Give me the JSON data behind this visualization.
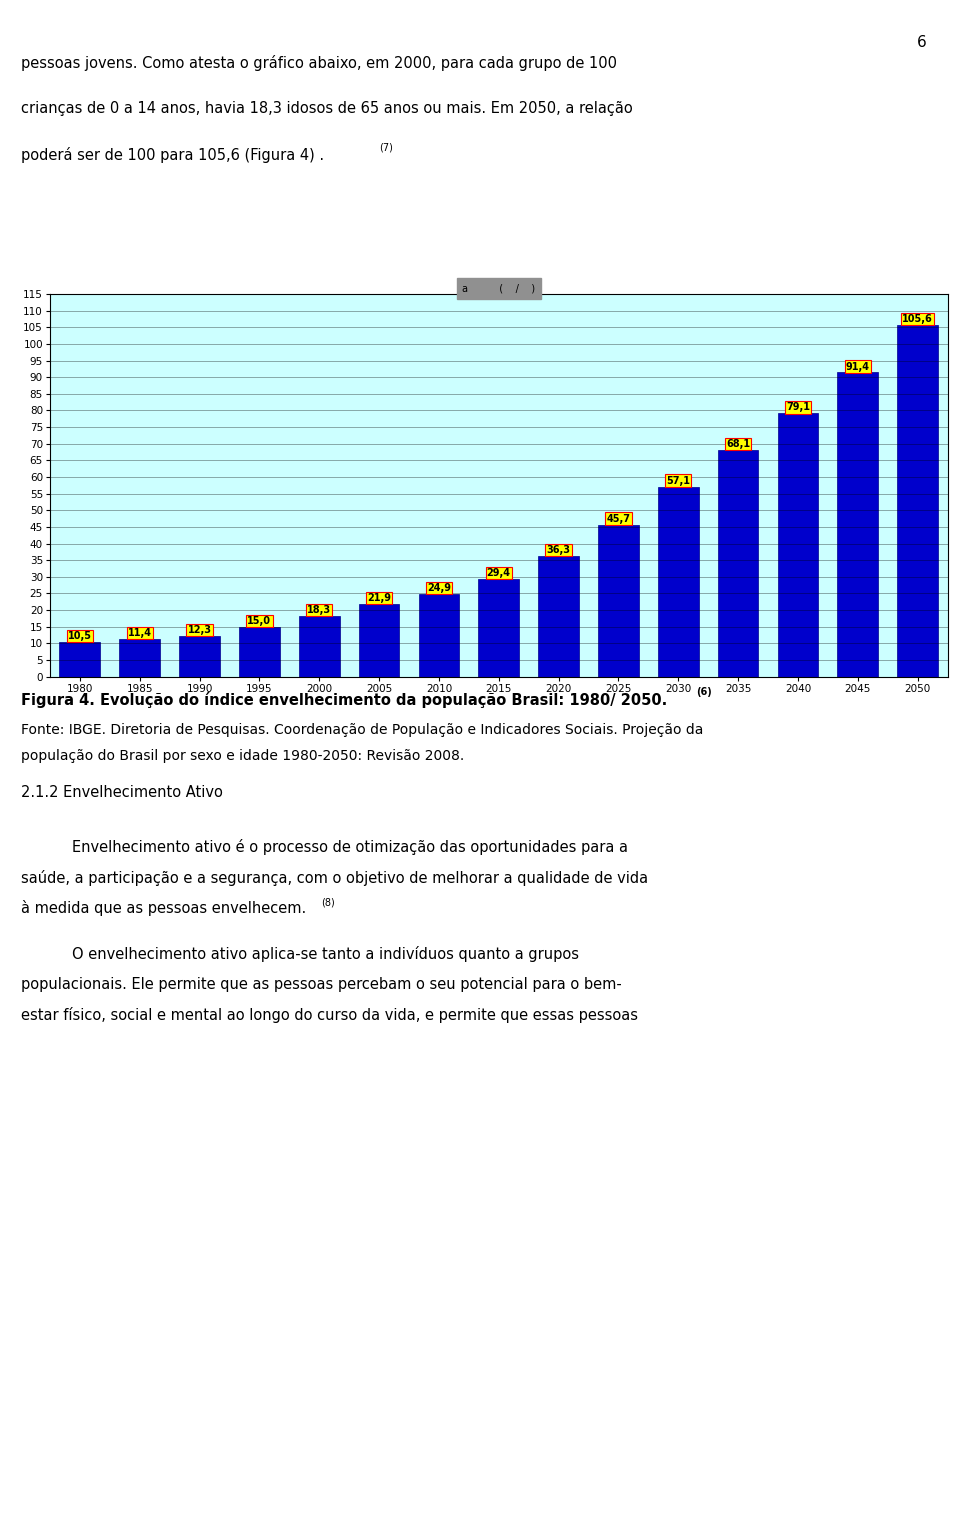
{
  "years": [
    1980,
    1985,
    1990,
    1995,
    2000,
    2005,
    2010,
    2015,
    2020,
    2025,
    2030,
    2035,
    2040,
    2045,
    2050
  ],
  "values": [
    10.5,
    11.4,
    12.3,
    15.0,
    18.3,
    21.9,
    24.9,
    29.4,
    36.3,
    45.7,
    57.1,
    68.1,
    79.1,
    91.4,
    105.6
  ],
  "bar_color": "#0000CC",
  "bar_edge_color": "#00008B",
  "label_bg_color": "#FFFF00",
  "label_border_color": "#FF0000",
  "plot_bg_color": "#CCFFFF",
  "title_bg_color": "#909090",
  "ylabel_values": [
    0,
    5,
    10,
    15,
    20,
    25,
    30,
    35,
    40,
    45,
    50,
    55,
    60,
    65,
    70,
    75,
    80,
    85,
    90,
    95,
    100,
    105,
    110,
    115
  ],
  "ylim": [
    0,
    115
  ],
  "fig_bg_color": "#FFFFFF",
  "label_fontsize": 7.0,
  "tick_fontsize": 7.5,
  "title_text": "a          (    /    )",
  "page_number": "6",
  "para1": "pessoas jovens. Como atesta o gráfico abaixo, em 2000, para cada grupo de 100",
  "para2": "crianças de 0 a 14 anos, havia 18,3 idosos de 65 anos ou mais. Em 2050, a relação",
  "para3": "poderá ser de 100 para 105,6 (Figura 4) .",
  "sup7": "(7)",
  "fig_caption": "Figura 4. Evolução do índice envelhecimento da população Brasil: 1980/ 2050.",
  "sup6": "(6)",
  "source1": "Fonte: IBGE. Diretoria de Pesquisas. Coordenação de População e Indicadores Sociais. Projeção da",
  "source2": "população do Brasil por sexo e idade 1980-2050: Revisão 2008.",
  "section_title": "2.1.2 Envelhecimento Ativo",
  "body1a": "Envelhecimento ativo é o processo de otimização das oportunidades para a",
  "body1b": "saúde, a participação e a segurança, com o objetivo de melhorar a qualidade de vida",
  "body1c": "à medida que as pessoas envelhecem.",
  "sup8": "(8)",
  "body2a": "O envelhecimento ativo aplica-se tanto a indivíduos quanto a grupos",
  "body2b": "populacionais. Ele permite que as pessoas percebam o seu potencial para o bem-",
  "body2c": "estar físico, social e mental ao longo do curso da vida, e permite que essas pessoas"
}
